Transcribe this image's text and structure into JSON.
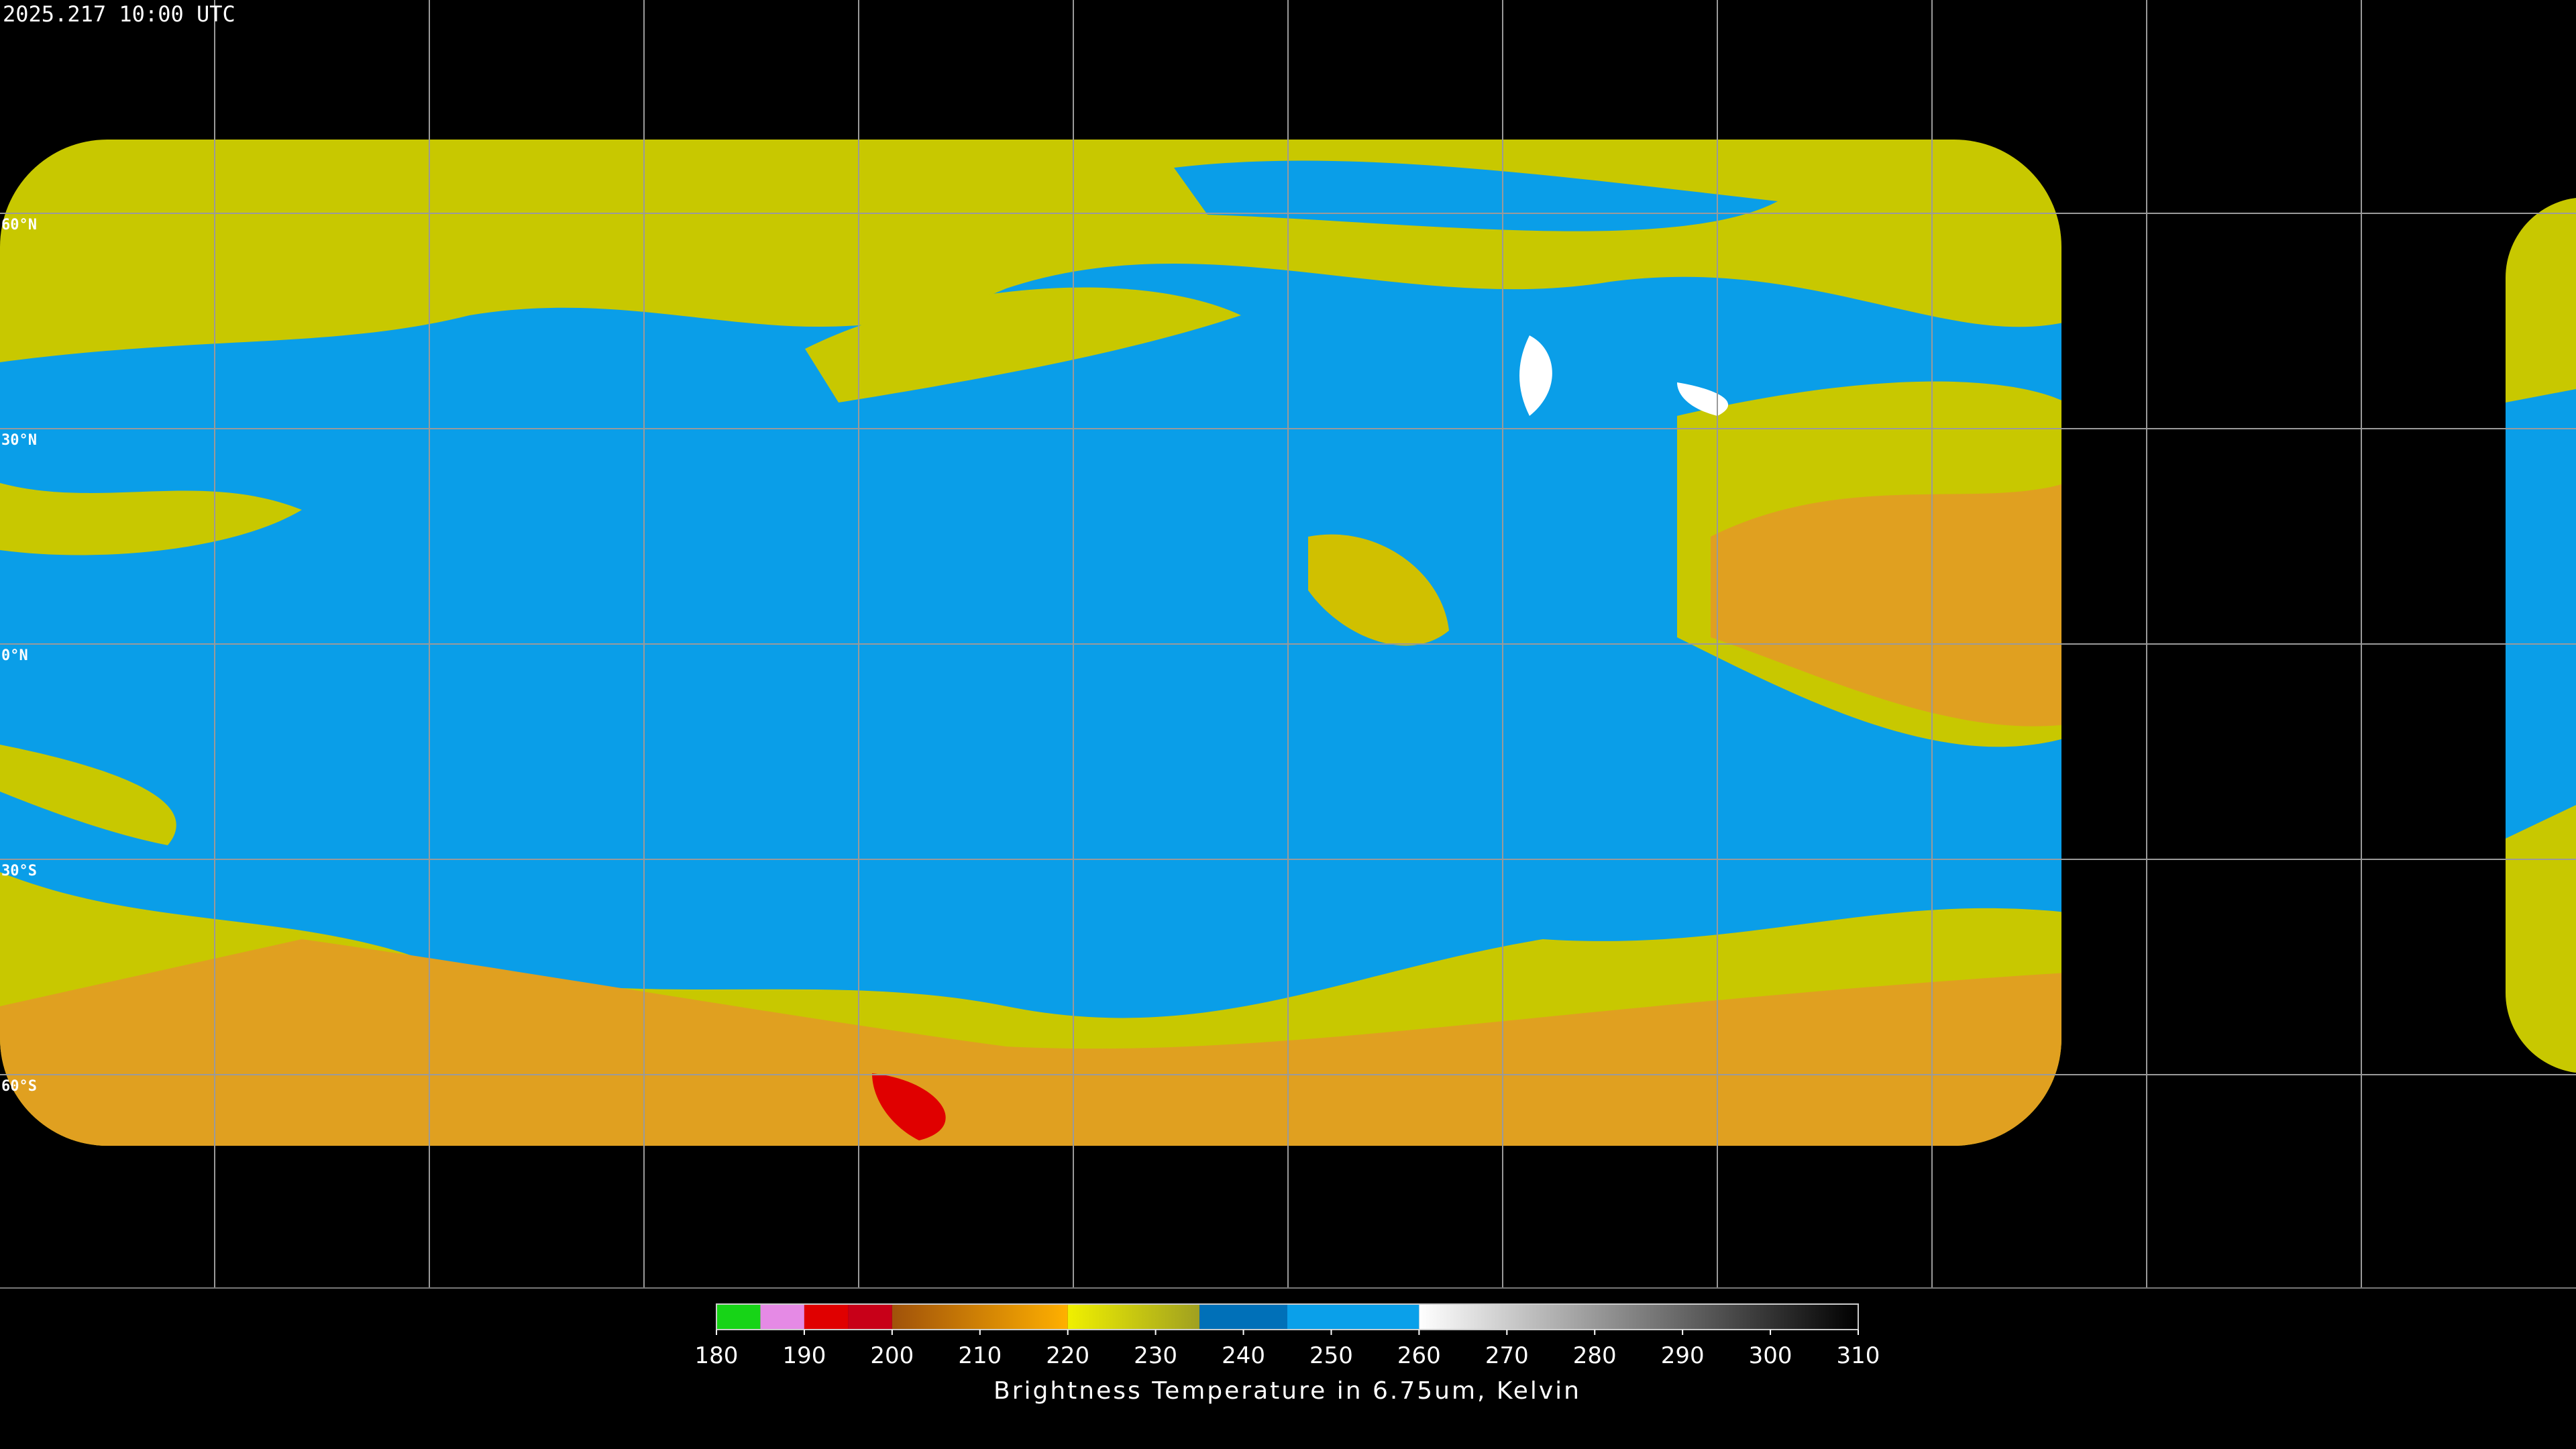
{
  "timestamp": "2025.217 10:00 UTC",
  "lat_labels": [
    "60°N",
    "30°N",
    "0°N",
    "30°S",
    "60°S"
  ],
  "colorbar": {
    "label": "Brightness Temperature in 6.75um, Kelvin",
    "range": [
      180,
      310
    ],
    "ticks": [
      180,
      190,
      200,
      210,
      220,
      230,
      240,
      250,
      260,
      270,
      280,
      290,
      300,
      310
    ],
    "segments": [
      {
        "from": 180,
        "to": 185,
        "colors": [
          "#17d417",
          "#17d417"
        ]
      },
      {
        "from": 185,
        "to": 190,
        "colors": [
          "#e58ae5",
          "#e58ae5"
        ]
      },
      {
        "from": 190,
        "to": 195,
        "colors": [
          "#e00000",
          "#e00000"
        ]
      },
      {
        "from": 195,
        "to": 200,
        "colors": [
          "#c80018",
          "#c80018"
        ]
      },
      {
        "from": 200,
        "to": 220,
        "colors": [
          "#a0520a",
          "#ffb000"
        ]
      },
      {
        "from": 220,
        "to": 235,
        "colors": [
          "#f0f000",
          "#a0a020"
        ]
      },
      {
        "from": 235,
        "to": 245,
        "colors": [
          "#0070b8",
          "#0070b8"
        ]
      },
      {
        "from": 245,
        "to": 260,
        "colors": [
          "#0aa0ea",
          "#0aa0ea"
        ]
      },
      {
        "from": 260,
        "to": 310,
        "colors": [
          "#ffffff",
          "#000000"
        ]
      }
    ]
  }
}
